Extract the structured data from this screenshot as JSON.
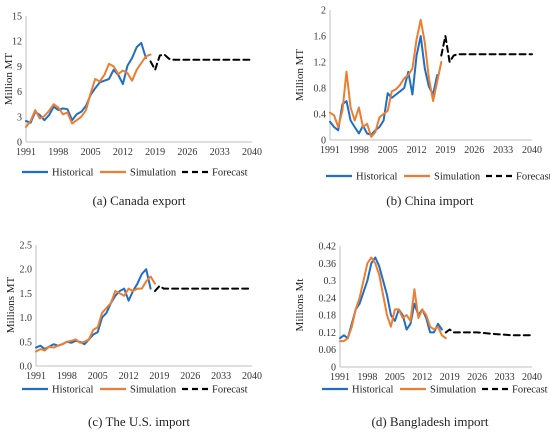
{
  "colors": {
    "historical": "#1f6fc5",
    "simulation": "#ed7d31",
    "forecast": "#000000"
  },
  "legend": [
    "Historical",
    "Simulation",
    "Forecast"
  ],
  "chart_data": [
    {
      "type": "line",
      "caption": "(a) Canada export",
      "ylabel": "Million MT",
      "xlabel": "",
      "grid": false,
      "legend_position": "bottom",
      "ylim": [
        0,
        15
      ],
      "yticks": [
        "0",
        "3",
        "6",
        "9",
        "12",
        "15"
      ],
      "xlim": [
        1991,
        2040
      ],
      "xticks": [
        "1991",
        "1998",
        "2005",
        "2012",
        "2019",
        "2026",
        "2033",
        "2040"
      ],
      "series": [
        {
          "name": "Historical",
          "style": "solid",
          "x": [
            1991,
            1992,
            1993,
            1994,
            1995,
            1996,
            1997,
            1998,
            1999,
            2000,
            2001,
            2002,
            2003,
            2004,
            2005,
            2006,
            2007,
            2008,
            2009,
            2010,
            2011,
            2012,
            2013,
            2014,
            2015,
            2016,
            2017
          ],
          "y": [
            2.5,
            2.3,
            3.6,
            3.2,
            2.6,
            3.2,
            4.2,
            3.8,
            4.0,
            3.9,
            2.6,
            3.3,
            3.6,
            4.3,
            5.6,
            6.4,
            7.1,
            7.3,
            7.5,
            8.6,
            8.0,
            6.9,
            9.1,
            10.0,
            11.3,
            11.8,
            10.0
          ]
        },
        {
          "name": "Simulation",
          "style": "solid",
          "x": [
            1991,
            1992,
            1993,
            1994,
            1995,
            1996,
            1997,
            1998,
            1999,
            2000,
            2001,
            2002,
            2003,
            2004,
            2005,
            2006,
            2007,
            2008,
            2009,
            2010,
            2011,
            2012,
            2013,
            2014,
            2015,
            2016,
            2017,
            2018
          ],
          "y": [
            1.8,
            2.5,
            3.8,
            2.8,
            3.1,
            3.7,
            4.5,
            4.1,
            3.3,
            3.5,
            2.2,
            2.6,
            3.0,
            3.8,
            5.8,
            7.5,
            7.2,
            8.0,
            9.3,
            9.0,
            8.1,
            8.5,
            8.2,
            7.3,
            8.6,
            9.4,
            10.2,
            10.4
          ]
        },
        {
          "name": "Forecast",
          "style": "dashed",
          "x": [
            2018,
            2019,
            2020,
            2021,
            2022,
            2023,
            2026,
            2030,
            2035,
            2040
          ],
          "y": [
            9.6,
            8.6,
            10.3,
            10.4,
            9.9,
            9.8,
            9.8,
            9.8,
            9.8,
            9.8
          ]
        }
      ]
    },
    {
      "type": "line",
      "caption": "(b) China import",
      "ylabel": "Million MT",
      "xlabel": "",
      "grid": false,
      "legend_position": "bottom",
      "ylim": [
        0,
        2
      ],
      "yticks": [
        "0",
        "0.4",
        "0.8",
        "1.2",
        "1.6",
        "2"
      ],
      "xlim": [
        1991,
        2040
      ],
      "xticks": [
        "1991",
        "1998",
        "2005",
        "2012",
        "2019",
        "2026",
        "2033",
        "2040"
      ],
      "series": [
        {
          "name": "Historical",
          "style": "solid",
          "x": [
            1991,
            1992,
            1993,
            1994,
            1995,
            1996,
            1997,
            1998,
            1999,
            2000,
            2001,
            2002,
            2003,
            2004,
            2005,
            2006,
            2007,
            2008,
            2009,
            2010,
            2011,
            2012,
            2013,
            2014,
            2015,
            2016,
            2017
          ],
          "y": [
            0.28,
            0.2,
            0.15,
            0.55,
            0.6,
            0.3,
            0.2,
            0.1,
            0.22,
            0.1,
            0.08,
            0.15,
            0.2,
            0.3,
            0.72,
            0.65,
            0.7,
            0.75,
            0.8,
            1.05,
            0.7,
            1.3,
            1.6,
            1.1,
            0.82,
            0.7,
            1.0
          ]
        },
        {
          "name": "Simulation",
          "style": "solid",
          "x": [
            1991,
            1992,
            1993,
            1994,
            1995,
            1996,
            1997,
            1998,
            1999,
            2000,
            2001,
            2002,
            2003,
            2004,
            2005,
            2006,
            2007,
            2008,
            2009,
            2010,
            2011,
            2012,
            2013,
            2014,
            2015,
            2016,
            2017,
            2018
          ],
          "y": [
            0.42,
            0.38,
            0.2,
            0.45,
            1.05,
            0.5,
            0.3,
            0.5,
            0.2,
            0.25,
            0.05,
            0.12,
            0.35,
            0.4,
            0.45,
            0.75,
            0.78,
            0.85,
            0.95,
            1.0,
            1.1,
            1.55,
            1.85,
            1.5,
            0.95,
            0.6,
            0.9,
            1.2
          ]
        },
        {
          "name": "Forecast",
          "style": "dashed",
          "x": [
            2018,
            2019,
            2020,
            2021,
            2022,
            2024,
            2026,
            2030,
            2035,
            2040
          ],
          "y": [
            1.3,
            1.6,
            1.2,
            1.3,
            1.32,
            1.32,
            1.32,
            1.32,
            1.32,
            1.32
          ]
        }
      ]
    },
    {
      "type": "line",
      "caption": "(c) The U.S. import",
      "ylabel": "Millions MT",
      "xlabel": "",
      "grid": false,
      "legend_position": "bottom",
      "ylim": [
        0,
        2.5
      ],
      "yticks": [
        "0.0",
        "0.5",
        "1.0",
        "1.5",
        "2.0",
        "2.5"
      ],
      "xlim": [
        1991,
        2040
      ],
      "xticks": [
        "1991",
        "1998",
        "2005",
        "2012",
        "2019",
        "2026",
        "2033",
        "2040"
      ],
      "series": [
        {
          "name": "Historical",
          "style": "solid",
          "x": [
            1991,
            1992,
            1993,
            1994,
            1995,
            1996,
            1997,
            1998,
            1999,
            2000,
            2001,
            2002,
            2003,
            2004,
            2005,
            2006,
            2007,
            2008,
            2009,
            2010,
            2011,
            2012,
            2013,
            2014,
            2015,
            2016,
            2017
          ],
          "y": [
            0.38,
            0.42,
            0.35,
            0.4,
            0.45,
            0.42,
            0.45,
            0.5,
            0.48,
            0.52,
            0.5,
            0.45,
            0.55,
            0.65,
            0.7,
            1.0,
            1.1,
            1.3,
            1.45,
            1.55,
            1.6,
            1.35,
            1.55,
            1.7,
            1.9,
            2.0,
            1.6
          ]
        },
        {
          "name": "Simulation",
          "style": "solid",
          "x": [
            1991,
            1992,
            1993,
            1994,
            1995,
            1996,
            1997,
            1998,
            1999,
            2000,
            2001,
            2002,
            2003,
            2004,
            2005,
            2006,
            2007,
            2008,
            2009,
            2010,
            2011,
            2012,
            2013,
            2014,
            2015,
            2016,
            2017,
            2018
          ],
          "y": [
            0.3,
            0.35,
            0.32,
            0.4,
            0.38,
            0.42,
            0.45,
            0.5,
            0.52,
            0.55,
            0.48,
            0.5,
            0.55,
            0.75,
            0.8,
            1.1,
            1.2,
            1.3,
            1.55,
            1.5,
            1.45,
            1.6,
            1.55,
            1.6,
            1.6,
            1.75,
            1.85,
            1.7
          ]
        },
        {
          "name": "Forecast",
          "style": "dashed",
          "x": [
            2018,
            2019,
            2020,
            2022,
            2026,
            2030,
            2035,
            2040
          ],
          "y": [
            1.55,
            1.65,
            1.6,
            1.6,
            1.6,
            1.6,
            1.6,
            1.6
          ]
        }
      ]
    },
    {
      "type": "line",
      "caption": "(d) Bangladesh import",
      "ylabel": "Millions Mt",
      "xlabel": "",
      "grid": false,
      "legend_position": "bottom",
      "ylim": [
        0,
        0.42
      ],
      "yticks": [
        "0",
        "0.06",
        "0.12",
        "0.18",
        "0.24",
        "0.3",
        "0.36",
        "0.42"
      ],
      "xlim": [
        1991,
        2040
      ],
      "xticks": [
        "1991",
        "1998",
        "2005",
        "2012",
        "2019",
        "2026",
        "2033",
        "2040"
      ],
      "series": [
        {
          "name": "Historical",
          "style": "solid",
          "x": [
            1991,
            1992,
            1993,
            1994,
            1995,
            1996,
            1997,
            1998,
            1999,
            2000,
            2001,
            2002,
            2003,
            2004,
            2005,
            2006,
            2007,
            2008,
            2009,
            2010,
            2011,
            2012,
            2013,
            2014,
            2015,
            2016,
            2017
          ],
          "y": [
            0.1,
            0.11,
            0.1,
            0.15,
            0.2,
            0.22,
            0.26,
            0.3,
            0.36,
            0.38,
            0.35,
            0.3,
            0.25,
            0.18,
            0.16,
            0.2,
            0.18,
            0.13,
            0.15,
            0.22,
            0.18,
            0.2,
            0.17,
            0.12,
            0.12,
            0.15,
            0.13
          ]
        },
        {
          "name": "Simulation",
          "style": "solid",
          "x": [
            1991,
            1992,
            1993,
            1994,
            1995,
            1996,
            1997,
            1998,
            1999,
            2000,
            2001,
            2002,
            2003,
            2004,
            2005,
            2006,
            2007,
            2008,
            2009,
            2010,
            2011,
            2012,
            2013,
            2014,
            2015,
            2016,
            2017,
            2018
          ],
          "y": [
            0.09,
            0.09,
            0.1,
            0.14,
            0.2,
            0.24,
            0.3,
            0.36,
            0.38,
            0.36,
            0.32,
            0.25,
            0.18,
            0.14,
            0.2,
            0.2,
            0.17,
            0.18,
            0.16,
            0.27,
            0.17,
            0.2,
            0.18,
            0.14,
            0.13,
            0.14,
            0.11,
            0.1
          ]
        },
        {
          "name": "Forecast",
          "style": "dashed",
          "x": [
            2018,
            2019,
            2020,
            2022,
            2026,
            2030,
            2035,
            2040
          ],
          "y": [
            0.12,
            0.13,
            0.12,
            0.12,
            0.12,
            0.115,
            0.11,
            0.11
          ]
        }
      ]
    }
  ]
}
